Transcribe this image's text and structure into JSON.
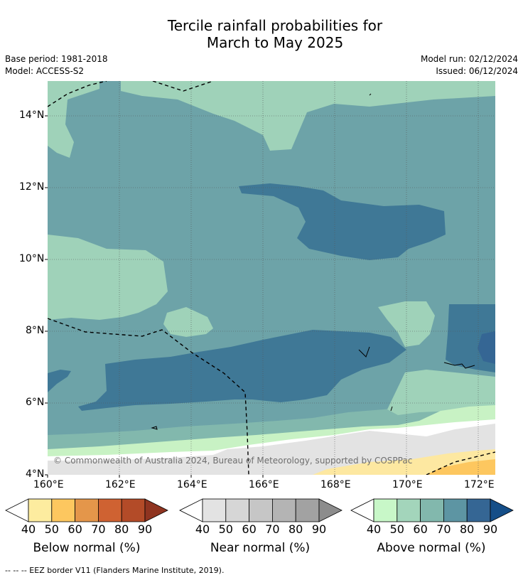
{
  "title": {
    "line1": "Tercile rainfall probabilities for",
    "line2": "March to May 2025"
  },
  "meta": {
    "base_period": "Base period: 1981-2018",
    "model": "Model: ACCESS-S2",
    "model_run": "Model run: 02/12/2024",
    "issued": "Issued: 06/12/2024"
  },
  "map": {
    "lat_labels": [
      "14°N",
      "12°N",
      "10°N",
      "8°N",
      "6°N",
      "4°N"
    ],
    "lon_labels": [
      "160°E",
      "162°E",
      "164°E",
      "166°E",
      "168°E",
      "170°E",
      "172°E"
    ],
    "copyright": "© Commonwealth of Australia 2024, Bureau of Meteorology, supported by COSPPac",
    "colors": {
      "above_40": "#c8f2c4",
      "above_50": "#9fd2b9",
      "above_60": "#82b8ad",
      "above_70": "#6da3a8",
      "above_80": "#3f7896",
      "near_40": "#e3e3e3",
      "below_40": "#fde8a1",
      "below_50": "#fdc75f"
    }
  },
  "colorbars": {
    "below": {
      "title": "Below normal (%)",
      "ticks": [
        "40",
        "50",
        "60",
        "70",
        "80",
        "90"
      ],
      "colors": [
        "#ffffff",
        "#fdec9f",
        "#fdc75f",
        "#e4964a",
        "#cf6232",
        "#b34b28",
        "#8f3420"
      ]
    },
    "near": {
      "title": "Near normal (%)",
      "ticks": [
        "40",
        "50",
        "60",
        "70",
        "80",
        "90"
      ],
      "colors": [
        "#ffffff",
        "#e3e3e3",
        "#d6d6d6",
        "#c6c6c6",
        "#b4b4b4",
        "#a2a2a2",
        "#8c8c8c"
      ]
    },
    "above": {
      "title": "Above normal (%)",
      "ticks": [
        "40",
        "50",
        "60",
        "70",
        "80",
        "90"
      ],
      "colors": [
        "#ffffff",
        "#c8f7c8",
        "#a3d5bb",
        "#82b8ad",
        "#5d95a3",
        "#356694",
        "#154e88"
      ]
    }
  },
  "footnote": "--  --  -- EEZ border V11 (Flanders Marine Institute, 2019)."
}
